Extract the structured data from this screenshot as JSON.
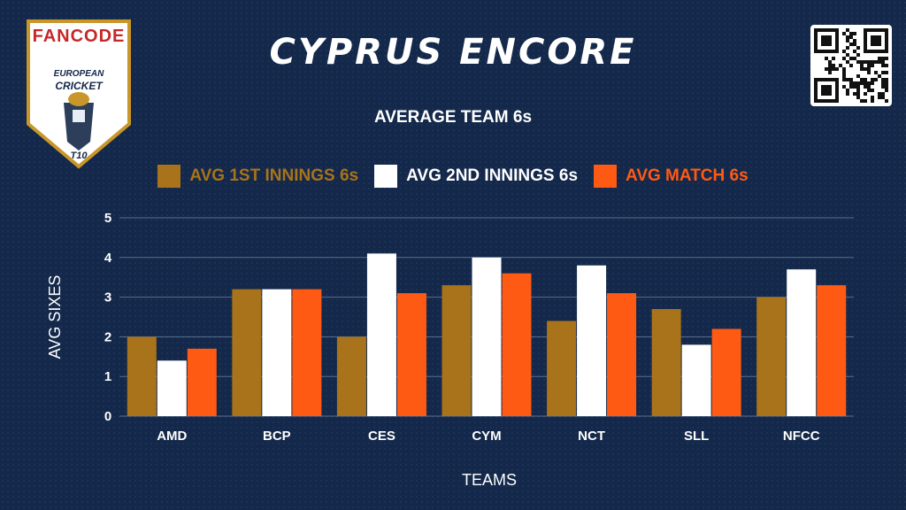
{
  "logo": {
    "brand": "FANCODE",
    "line1": "EUROPEAN",
    "line2": "CRICKET",
    "badge": "T10"
  },
  "header": {
    "title": "CYPRUS ENCORE"
  },
  "qr_icon": "qr-code-icon",
  "colors": {
    "background": "#13284a",
    "first_innings": "#a8731a",
    "second_innings": "#ffffff",
    "match": "#ff5a14",
    "grid": "#5b6f8e"
  },
  "chart_data": {
    "type": "bar",
    "title": "AVERAGE TEAM 6s",
    "xlabel": "TEAMS",
    "ylabel": "AVG SIXES",
    "ylim": [
      0,
      5
    ],
    "yticks": [
      0,
      1,
      2,
      3,
      4,
      5
    ],
    "grid": true,
    "legend_position": "top",
    "categories": [
      "AMD",
      "BCP",
      "CES",
      "CYM",
      "NCT",
      "SLL",
      "NFCC"
    ],
    "series": [
      {
        "name": "AVG 1ST INNINGS 6s",
        "color": "#a8731a",
        "values": [
          2.0,
          3.2,
          2.0,
          3.3,
          2.4,
          2.7,
          3.0
        ]
      },
      {
        "name": "AVG 2ND INNINGS 6s",
        "color": "#ffffff",
        "values": [
          1.4,
          3.2,
          4.1,
          4.0,
          3.8,
          1.8,
          3.7
        ]
      },
      {
        "name": "AVG MATCH 6s",
        "color": "#ff5a14",
        "values": [
          1.7,
          3.2,
          3.1,
          3.6,
          3.1,
          2.2,
          3.3
        ]
      }
    ]
  }
}
